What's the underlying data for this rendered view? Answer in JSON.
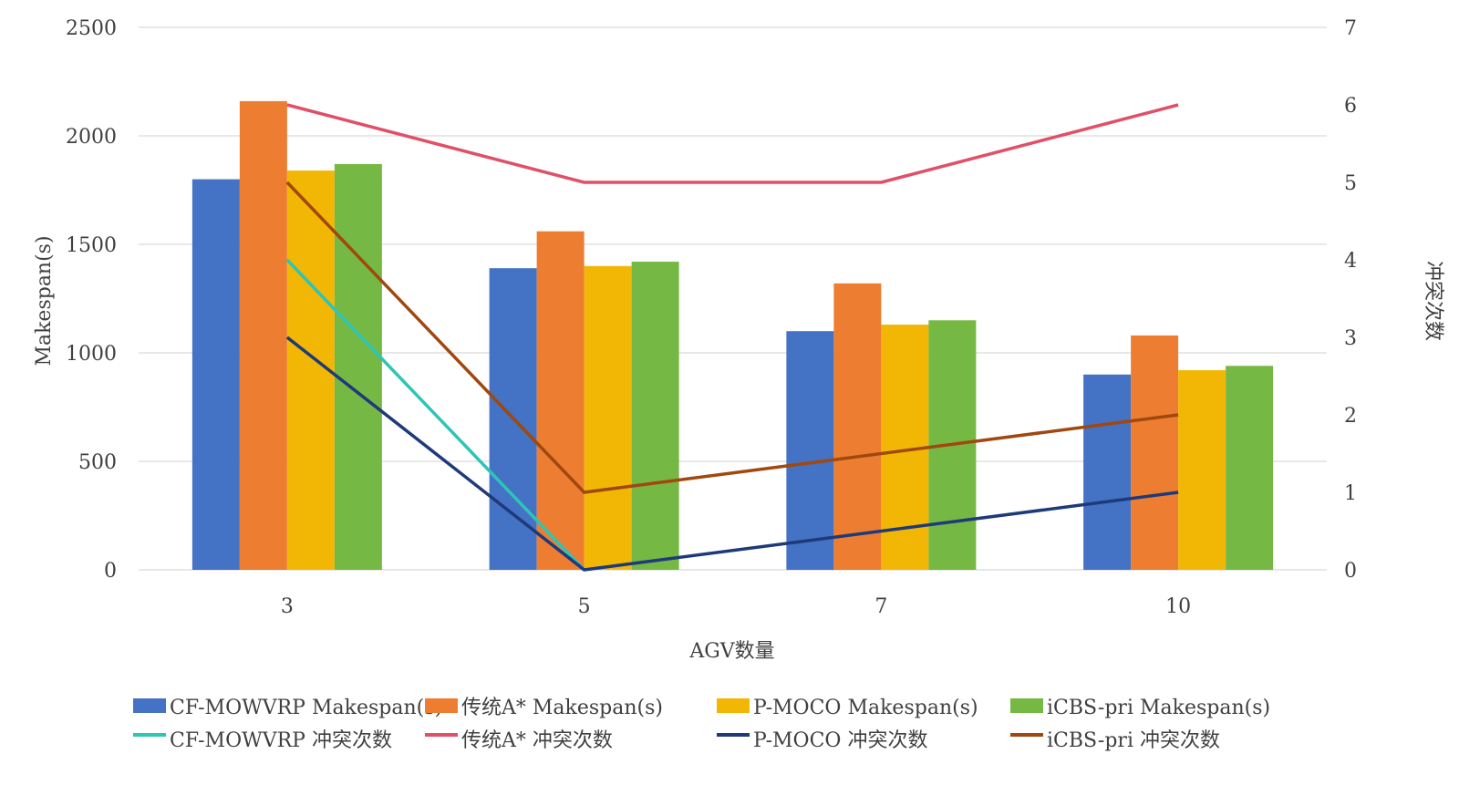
{
  "chart_data": {
    "type": "bar",
    "categories": [
      "3",
      "5",
      "7",
      "10"
    ],
    "xlabel": "AGV数量",
    "ylabel": "Makespan(s)",
    "y2label": "冲突次数",
    "ylim": [
      0,
      2500
    ],
    "y2lim": [
      0,
      7
    ],
    "yticks": [
      "0",
      "500",
      "1000",
      "1500",
      "2000",
      "2500"
    ],
    "y2ticks": [
      "0",
      "1",
      "2",
      "3",
      "4",
      "5",
      "6",
      "7"
    ],
    "grid": true,
    "legend_position": "bottom",
    "bar_series": [
      {
        "name": "CF-MOWVRP Makespan(s)",
        "color": "#4472C4",
        "values": [
          1800,
          1390,
          1100,
          900
        ]
      },
      {
        "name": "传统A* Makespan(s)",
        "color": "#ED7D31",
        "values": [
          2160,
          1560,
          1320,
          1080
        ]
      },
      {
        "name": "P-MOCO Makespan(s)",
        "color": "#F2B705",
        "values": [
          1840,
          1400,
          1130,
          920
        ]
      },
      {
        "name": "iCBS-pri Makespan(s)",
        "color": "#76B844",
        "values": [
          1870,
          1420,
          1150,
          940
        ]
      }
    ],
    "line_series": [
      {
        "name": "CF-MOWVRP 冲突次数",
        "color": "#2EC4B6",
        "values": [
          4,
          0,
          null,
          null
        ]
      },
      {
        "name": "传统A* 冲突次数",
        "color": "#E05068",
        "values": [
          6,
          5,
          5,
          6
        ]
      },
      {
        "name": "P-MOCO 冲突次数",
        "color": "#1F3A7A",
        "values": [
          3,
          0,
          null,
          1
        ]
      },
      {
        "name": "iCBS-pri 冲突次数",
        "color": "#A0480F",
        "values": [
          5,
          1,
          null,
          2
        ]
      }
    ]
  }
}
